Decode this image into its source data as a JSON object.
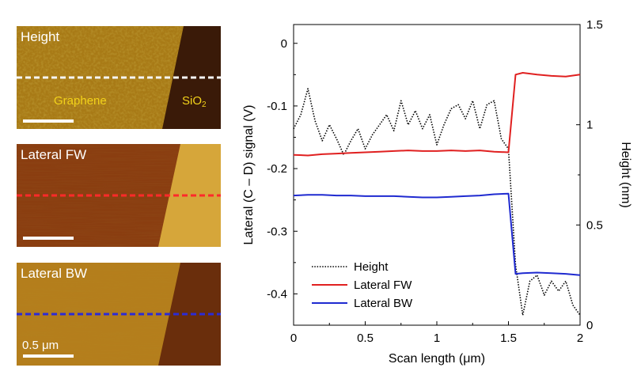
{
  "panels": [
    {
      "title": "Height",
      "labels": [
        "Graphene",
        "SiO",
        "2"
      ],
      "line_color": "#f5f5f5",
      "scale_bar": ""
    },
    {
      "title": "Lateral FW",
      "line_color": "#ff2a2a",
      "scale_bar": ""
    },
    {
      "title": "Lateral BW",
      "line_color": "#2b2bd6",
      "scale_bar": "0.5 μm"
    }
  ],
  "chart_data": {
    "type": "line",
    "xlabel": "Scan length (μm)",
    "ylabel_left": "Lateral (C – D) signal (V)",
    "ylabel_right": "Height (nm)",
    "xlim": [
      0,
      2
    ],
    "ylim_left": [
      -0.45,
      0.03
    ],
    "ylim_right": [
      0,
      1.5
    ],
    "xticks": [
      "0",
      "0.5",
      "1",
      "1.5",
      "2"
    ],
    "yticks_left": [
      "0",
      "-0.1",
      "-0.2",
      "-0.3",
      "-0.4"
    ],
    "yticks_right": [
      "0",
      "0.5",
      "1",
      "1.5"
    ],
    "legend_position": "bottom-left",
    "series": [
      {
        "name": "Height",
        "axis": "right",
        "style": "dotted",
        "color": "#000000",
        "x": [
          0,
          0.05,
          0.1,
          0.15,
          0.2,
          0.25,
          0.3,
          0.35,
          0.4,
          0.45,
          0.5,
          0.55,
          0.6,
          0.65,
          0.7,
          0.75,
          0.8,
          0.85,
          0.9,
          0.95,
          1.0,
          1.05,
          1.1,
          1.15,
          1.2,
          1.25,
          1.3,
          1.35,
          1.4,
          1.45,
          1.5,
          1.55,
          1.6,
          1.65,
          1.7,
          1.75,
          1.8,
          1.85,
          1.9,
          1.95,
          2.0
        ],
        "y": [
          0.98,
          1.05,
          1.18,
          1.02,
          0.92,
          1.0,
          0.93,
          0.85,
          0.92,
          0.98,
          0.88,
          0.95,
          1.0,
          1.05,
          0.97,
          1.12,
          1.0,
          1.07,
          0.98,
          1.05,
          0.9,
          1.0,
          1.08,
          1.1,
          1.03,
          1.12,
          0.98,
          1.1,
          1.12,
          0.93,
          0.88,
          0.3,
          0.05,
          0.22,
          0.25,
          0.15,
          0.22,
          0.17,
          0.22,
          0.1,
          0.05
        ]
      },
      {
        "name": "Lateral FW",
        "axis": "left",
        "style": "solid",
        "color": "#e02020",
        "x": [
          0,
          0.1,
          0.2,
          0.3,
          0.4,
          0.5,
          0.6,
          0.7,
          0.8,
          0.9,
          1.0,
          1.1,
          1.2,
          1.3,
          1.4,
          1.5,
          1.55,
          1.6,
          1.7,
          1.8,
          1.9,
          2.0
        ],
        "y": [
          -0.178,
          -0.179,
          -0.177,
          -0.176,
          -0.175,
          -0.174,
          -0.173,
          -0.172,
          -0.171,
          -0.172,
          -0.172,
          -0.171,
          -0.172,
          -0.171,
          -0.173,
          -0.174,
          -0.05,
          -0.047,
          -0.05,
          -0.052,
          -0.053,
          -0.05
        ]
      },
      {
        "name": "Lateral BW",
        "axis": "left",
        "style": "solid",
        "color": "#1f2ad0",
        "x": [
          0,
          0.1,
          0.2,
          0.3,
          0.4,
          0.5,
          0.6,
          0.7,
          0.8,
          0.9,
          1.0,
          1.1,
          1.2,
          1.3,
          1.4,
          1.5,
          1.55,
          1.6,
          1.7,
          1.8,
          1.9,
          2.0
        ],
        "y": [
          -0.243,
          -0.242,
          -0.242,
          -0.243,
          -0.243,
          -0.244,
          -0.244,
          -0.244,
          -0.245,
          -0.246,
          -0.246,
          -0.245,
          -0.244,
          -0.243,
          -0.241,
          -0.24,
          -0.368,
          -0.367,
          -0.366,
          -0.367,
          -0.368,
          -0.37
        ]
      }
    ]
  }
}
